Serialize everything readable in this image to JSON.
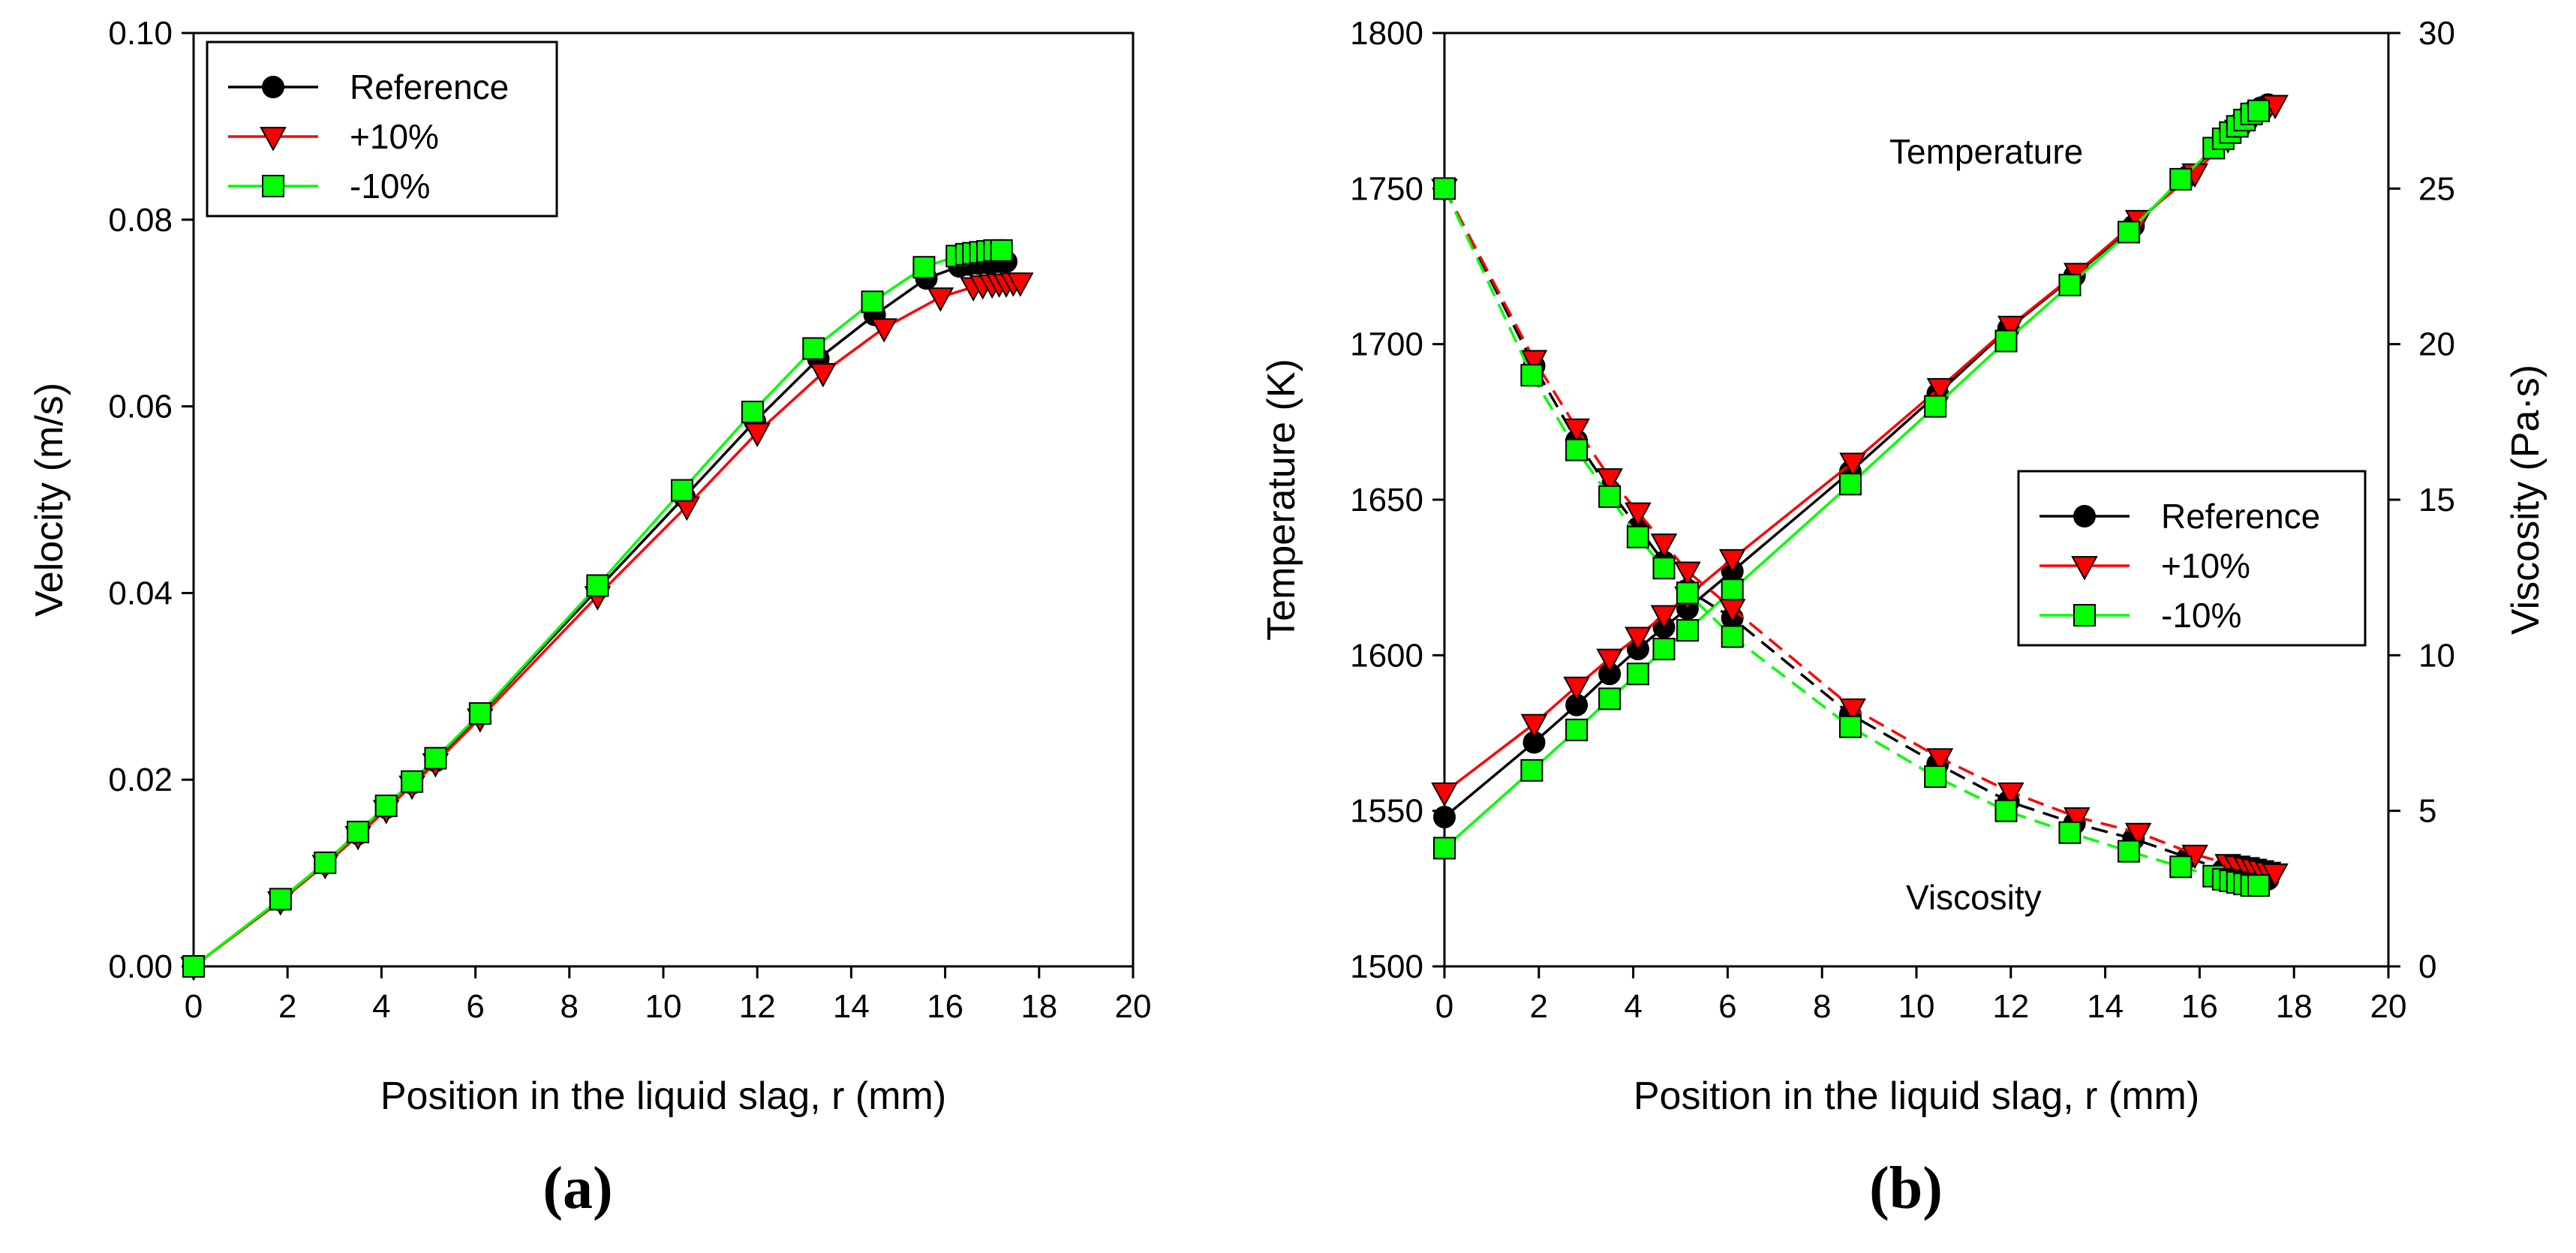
{
  "chart_data": [
    {
      "id": "a",
      "type": "line",
      "caption": "(a)",
      "xlabel": "Position in the liquid slag, r (mm)",
      "ylabel": "Velocity (m/s)",
      "xlim": [
        0,
        20
      ],
      "ylim": [
        0,
        0.1
      ],
      "xticks": [
        "0",
        "2",
        "4",
        "6",
        "8",
        "10",
        "12",
        "14",
        "16",
        "18",
        "20"
      ],
      "yticks": [
        "0.00",
        "0.02",
        "0.04",
        "0.06",
        "0.08",
        "0.10"
      ],
      "legend": {
        "position": "top-left",
        "entries": [
          "Reference",
          "+10%",
          "-10%"
        ]
      },
      "series": [
        {
          "name": "Reference",
          "color": "#000000",
          "marker": "circle",
          "x": [
            0,
            1.85,
            2.8,
            3.5,
            4.1,
            4.65,
            5.15,
            6.1,
            8.6,
            10.45,
            11.95,
            13.3,
            14.5,
            15.6,
            16.3,
            16.5,
            16.7,
            16.85,
            17.0,
            17.15,
            17.3
          ],
          "y": [
            0,
            0.0071,
            0.011,
            0.0142,
            0.017,
            0.0196,
            0.022,
            0.027,
            0.0404,
            0.0503,
            0.0584,
            0.0651,
            0.0698,
            0.0737,
            0.075,
            0.0752,
            0.0753,
            0.0754,
            0.0754,
            0.0755,
            0.0755
          ]
        },
        {
          "name": "+10%",
          "color": "#ff0000",
          "marker": "triangle-down",
          "x": [
            0,
            1.85,
            2.8,
            3.5,
            4.1,
            4.65,
            5.15,
            6.1,
            8.6,
            10.5,
            12.0,
            13.4,
            14.7,
            15.9,
            16.6,
            16.8,
            17.0,
            17.15,
            17.3,
            17.45,
            17.6
          ],
          "y": [
            0,
            0.007,
            0.0109,
            0.014,
            0.0168,
            0.0194,
            0.0218,
            0.0266,
            0.0397,
            0.0493,
            0.0572,
            0.0636,
            0.0684,
            0.0717,
            0.0728,
            0.073,
            0.0731,
            0.0732,
            0.0732,
            0.0733,
            0.0733
          ]
        },
        {
          "name": "-10%",
          "color": "#00ff00",
          "marker": "square",
          "x": [
            0,
            1.85,
            2.8,
            3.5,
            4.1,
            4.65,
            5.15,
            6.1,
            8.6,
            10.4,
            11.9,
            13.2,
            14.45,
            15.55,
            16.25,
            16.45,
            16.6,
            16.75,
            16.9,
            17.05,
            17.2
          ],
          "y": [
            0,
            0.0072,
            0.0111,
            0.0144,
            0.0172,
            0.0198,
            0.0223,
            0.0271,
            0.0408,
            0.051,
            0.0594,
            0.0662,
            0.0712,
            0.0749,
            0.0761,
            0.0763,
            0.0764,
            0.0765,
            0.0766,
            0.0767,
            0.0767
          ]
        }
      ]
    },
    {
      "id": "b",
      "type": "line",
      "caption": "(b)",
      "xlabel": "Position in the liquid slag, r (mm)",
      "ylabel": "Temperature (K)",
      "y2label": "Viscosity (Pa·s)",
      "xlim": [
        0,
        20
      ],
      "ylim": [
        1500,
        1800
      ],
      "y2lim": [
        0,
        30
      ],
      "xticks": [
        "0",
        "2",
        "4",
        "6",
        "8",
        "10",
        "12",
        "14",
        "16",
        "18",
        "20"
      ],
      "yticks": [
        "1500",
        "1550",
        "1600",
        "1650",
        "1700",
        "1750",
        "1800"
      ],
      "y2ticks": [
        "0",
        "5",
        "10",
        "15",
        "20",
        "25",
        "30"
      ],
      "legend": {
        "position": "center-right",
        "entries": [
          "Reference",
          "+10%",
          "-10%"
        ]
      },
      "annotations": {
        "temperature": "Temperature",
        "viscosity": "Viscosity"
      },
      "series": [
        {
          "name": "Reference",
          "quantity": "temperature",
          "axis": "left",
          "color": "#000000",
          "marker": "circle",
          "dash": false,
          "x": [
            0,
            1.9,
            2.8,
            3.5,
            4.1,
            4.65,
            5.15,
            6.1,
            8.6,
            10.45,
            11.95,
            13.35,
            14.6,
            15.75,
            16.5,
            16.7,
            16.85,
            17.0,
            17.15,
            17.3,
            17.45
          ],
          "y": [
            1548,
            1572,
            1584,
            1594,
            1602,
            1609,
            1615,
            1627,
            1659,
            1684,
            1705,
            1722,
            1738,
            1754,
            1766,
            1769,
            1771,
            1773,
            1775,
            1776,
            1777
          ]
        },
        {
          "name": "+10%",
          "quantity": "temperature",
          "axis": "left",
          "color": "#ff0000",
          "marker": "triangle-down",
          "dash": false,
          "x": [
            0,
            1.9,
            2.8,
            3.5,
            4.1,
            4.65,
            5.15,
            6.1,
            8.65,
            10.5,
            12.0,
            13.4,
            14.7,
            15.9,
            16.6,
            16.8,
            17.0,
            17.15,
            17.3,
            17.45,
            17.6
          ],
          "y": [
            1556,
            1578,
            1590,
            1599,
            1606,
            1613,
            1619,
            1631,
            1662,
            1686,
            1706,
            1723,
            1740,
            1755,
            1766,
            1769,
            1771,
            1773,
            1775,
            1776,
            1777
          ]
        },
        {
          "name": "-10%",
          "quantity": "temperature",
          "axis": "left",
          "color": "#00ff00",
          "marker": "square",
          "dash": false,
          "x": [
            0,
            1.85,
            2.8,
            3.5,
            4.1,
            4.65,
            5.15,
            6.1,
            8.6,
            10.4,
            11.9,
            13.25,
            14.5,
            15.6,
            16.3,
            16.5,
            16.65,
            16.8,
            16.95,
            17.1,
            17.25
          ],
          "y": [
            1538,
            1563,
            1576,
            1586,
            1594,
            1602,
            1608,
            1621,
            1655,
            1680,
            1701,
            1719,
            1736,
            1753,
            1763,
            1766,
            1768,
            1770,
            1772,
            1774,
            1775
          ]
        },
        {
          "name": "Reference",
          "quantity": "viscosity",
          "axis": "right",
          "color": "#000000",
          "marker": "circle",
          "dash": true,
          "x": [
            0,
            1.9,
            2.8,
            3.5,
            4.1,
            4.65,
            5.15,
            6.1,
            8.6,
            10.45,
            11.95,
            13.35,
            14.6,
            15.75,
            16.5,
            16.7,
            16.85,
            17.0,
            17.15,
            17.3,
            17.45
          ],
          "y": [
            25,
            19.3,
            16.9,
            15.3,
            14.1,
            13.0,
            12.1,
            11.2,
            8.1,
            6.5,
            5.3,
            4.6,
            4.1,
            3.5,
            3.1,
            3.05,
            3.0,
            2.95,
            2.9,
            2.85,
            2.8
          ]
        },
        {
          "name": "+10%",
          "quantity": "viscosity",
          "axis": "right",
          "color": "#ff0000",
          "marker": "triangle-down",
          "dash": true,
          "x": [
            0,
            1.9,
            2.8,
            3.5,
            4.1,
            4.65,
            5.15,
            6.1,
            8.65,
            10.5,
            12.0,
            13.4,
            14.7,
            15.9,
            16.6,
            16.8,
            17.0,
            17.15,
            17.3,
            17.45,
            17.6
          ],
          "y": [
            25,
            19.5,
            17.3,
            15.7,
            14.6,
            13.6,
            12.7,
            11.5,
            8.3,
            6.7,
            5.6,
            4.8,
            4.3,
            3.6,
            3.3,
            3.25,
            3.2,
            3.15,
            3.1,
            3.05,
            3.0
          ]
        },
        {
          "name": "-10%",
          "quantity": "viscosity",
          "axis": "right",
          "color": "#00ff00",
          "marker": "square",
          "dash": true,
          "x": [
            0,
            1.85,
            2.8,
            3.5,
            4.1,
            4.65,
            5.15,
            6.1,
            8.6,
            10.4,
            11.9,
            13.25,
            14.5,
            15.6,
            16.3,
            16.5,
            16.65,
            16.8,
            16.95,
            17.1,
            17.25
          ],
          "y": [
            25,
            19.0,
            16.6,
            15.1,
            13.8,
            12.8,
            12.0,
            10.6,
            7.7,
            6.1,
            5.0,
            4.3,
            3.7,
            3.2,
            2.9,
            2.8,
            2.75,
            2.7,
            2.65,
            2.6,
            2.6
          ]
        }
      ]
    }
  ]
}
